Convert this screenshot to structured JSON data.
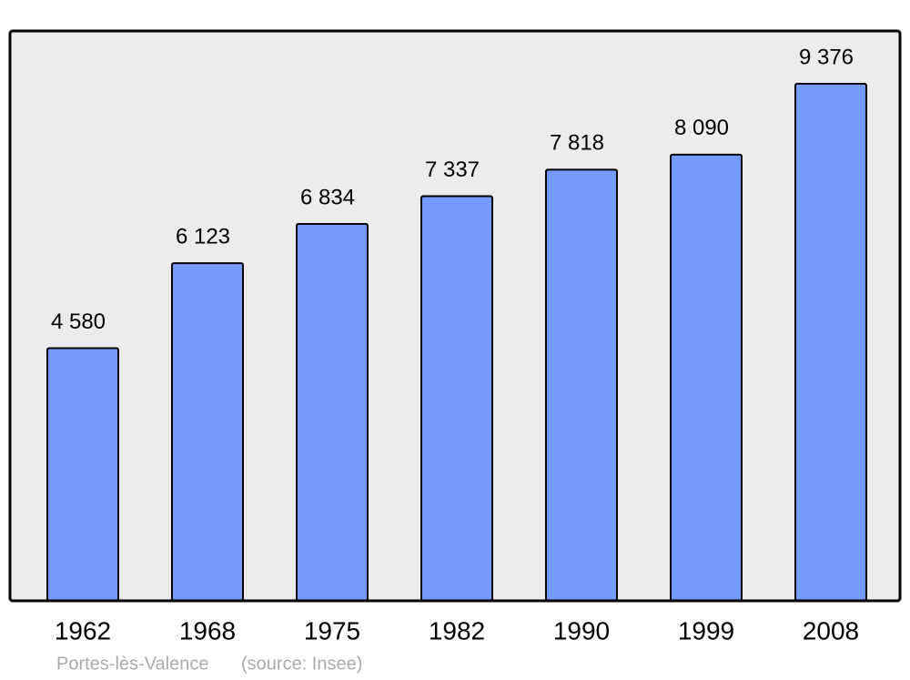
{
  "chart_data": {
    "type": "bar",
    "categories": [
      "1962",
      "1968",
      "1975",
      "1982",
      "1990",
      "1999",
      "2008"
    ],
    "values": [
      4580,
      6123,
      6834,
      7337,
      7818,
      8090,
      9376
    ],
    "value_labels": [
      "4 580",
      "6 123",
      "6 834",
      "7 337",
      "7 818",
      "8 090",
      "9 376"
    ],
    "color": "#7499ff",
    "place": "Portes-lès-Valence",
    "source": "(source: Insee)"
  }
}
